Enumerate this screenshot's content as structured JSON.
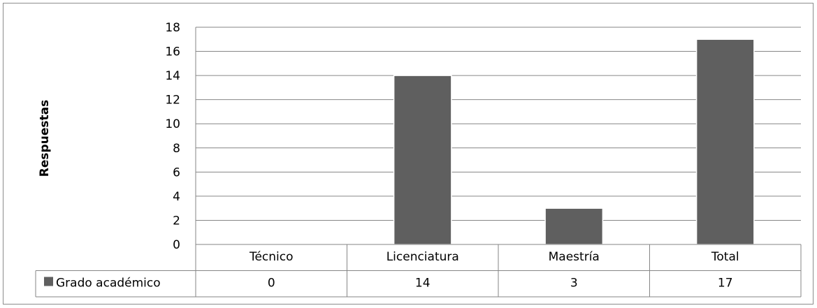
{
  "chart_data": {
    "type": "bar",
    "title": "",
    "xlabel": "",
    "ylabel": "Respuestas",
    "categories": [
      "Técnico",
      "Licenciatura",
      "Maestría",
      "Total"
    ],
    "series": [
      {
        "name": "Grado académico",
        "values": [
          0,
          14,
          3,
          17
        ],
        "color": "#5f5f5f"
      }
    ],
    "ylim": [
      0,
      18
    ],
    "yticks": [
      0,
      2,
      4,
      6,
      8,
      10,
      12,
      14,
      16,
      18
    ],
    "grid": true,
    "data_table": true,
    "legend_key_in_table": true
  }
}
